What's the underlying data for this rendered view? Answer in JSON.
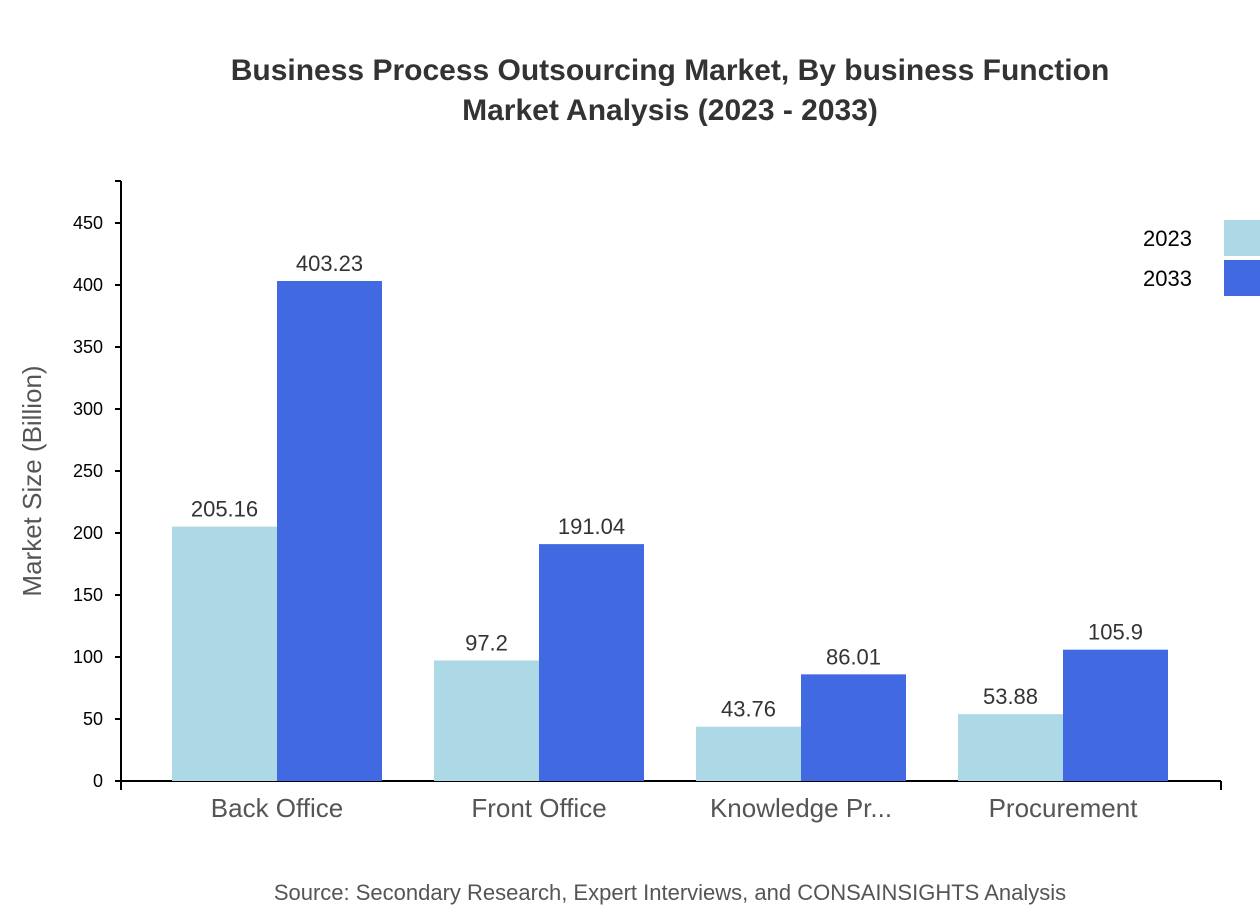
{
  "chart_data": {
    "type": "bar",
    "title": [
      "Business Process Outsourcing Market, By business Function",
      "Market Analysis (2023 - 2033)"
    ],
    "xlabel": "",
    "ylabel": "Market Size (Billion)",
    "categories": [
      "Back Office",
      "Front Office",
      "Knowledge Pr...",
      "Procurement"
    ],
    "series": [
      {
        "name": "2023",
        "color": "#add8e6",
        "values": [
          205.16,
          97.2,
          43.76,
          53.88
        ]
      },
      {
        "name": "2033",
        "color": "#4169e1",
        "values": [
          403.23,
          191.04,
          86.01,
          105.9
        ]
      }
    ],
    "ylim": [
      0,
      483.876
    ],
    "yticks": [
      0,
      50,
      100,
      150,
      200,
      250,
      300,
      350,
      400,
      450
    ],
    "grid": false,
    "legend": "top-right",
    "source": "Source: Secondary Research, Expert Interviews, and CONSAINSIGHTS Analysis"
  }
}
